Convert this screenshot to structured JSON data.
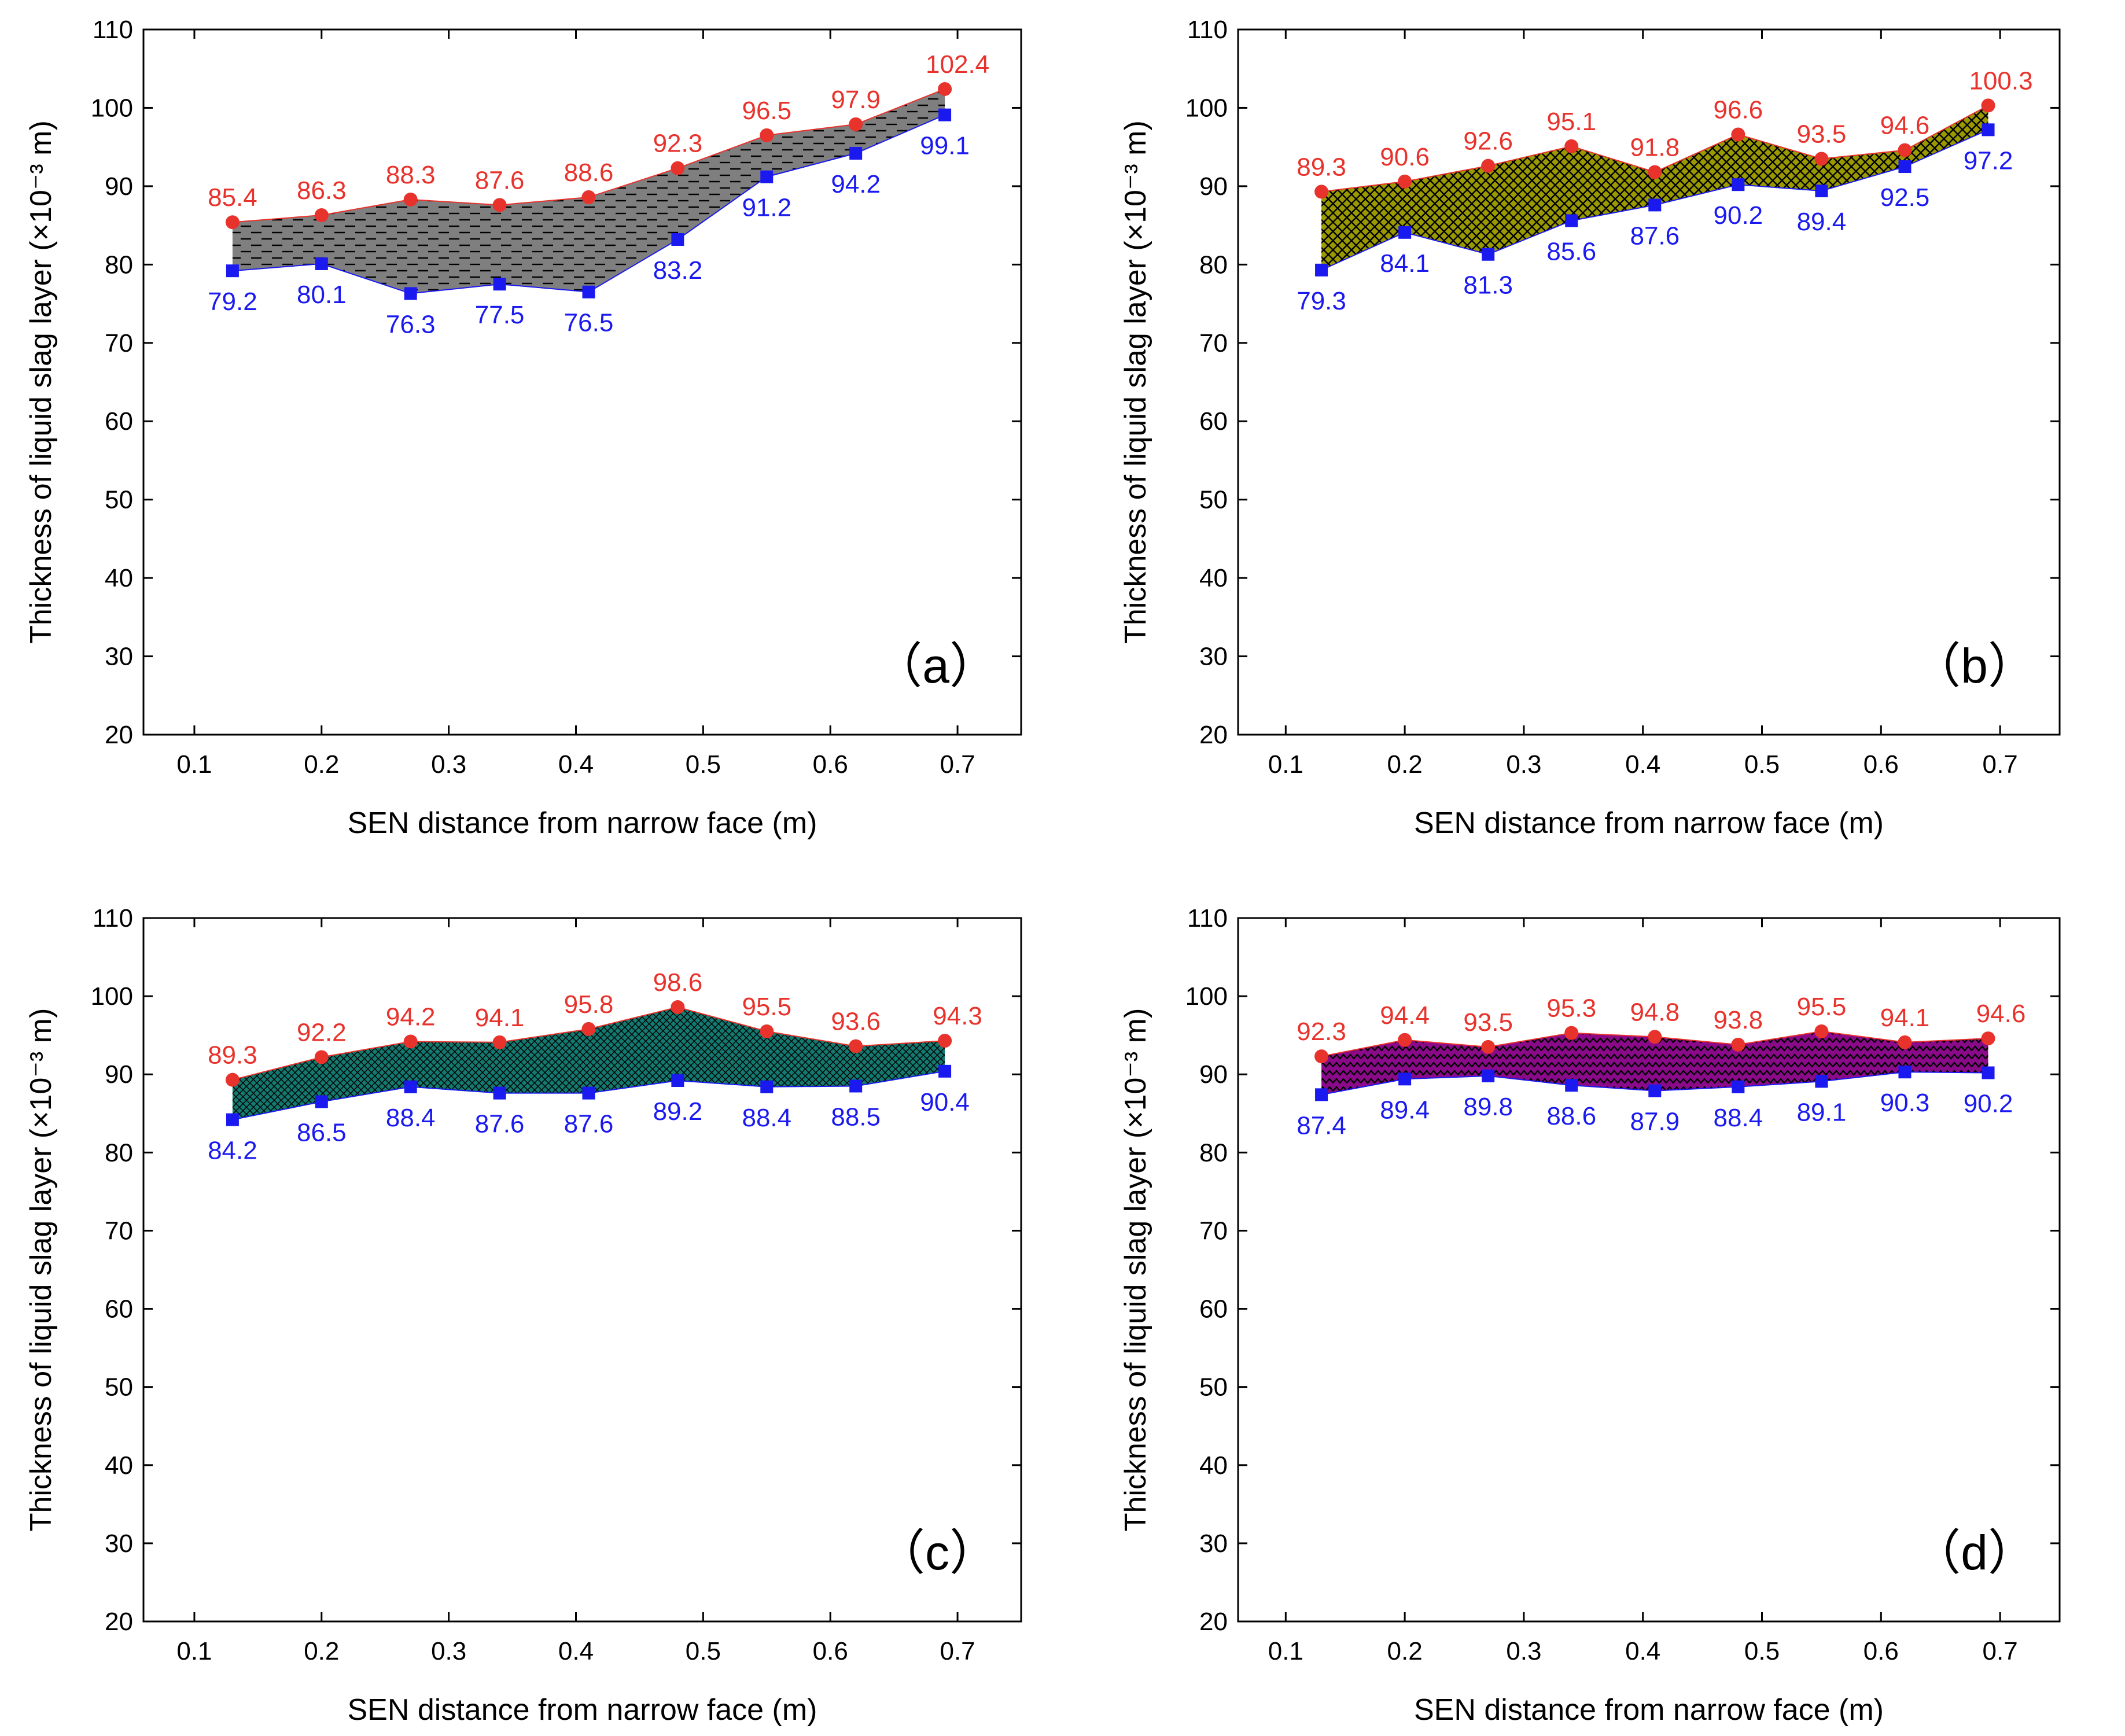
{
  "chart_data": [
    {
      "type": "area",
      "panel_label": "（a）",
      "xlabel": "SEN distance from narrow face (m)",
      "ylabel": "Thickness of liquid slag layer (×10⁻³ m)",
      "xlim": [
        0.06,
        0.75
      ],
      "ylim": [
        20,
        110
      ],
      "xticks": [
        "0.1",
        "0.2",
        "0.3",
        "0.4",
        "0.5",
        "0.6",
        "0.7"
      ],
      "yticks": [
        "20",
        "30",
        "40",
        "50",
        "60",
        "70",
        "80",
        "90",
        "100",
        "110"
      ],
      "x": [
        0.13,
        0.2,
        0.27,
        0.34,
        0.41,
        0.48,
        0.55,
        0.62,
        0.69
      ],
      "fill_color": "#7f7f7f",
      "pattern": "dash",
      "series": [
        {
          "name": "upper",
          "color": "#e8322c",
          "marker": "circle",
          "values": [
            85.4,
            86.3,
            88.3,
            87.6,
            88.6,
            92.3,
            96.5,
            97.9,
            102.4
          ],
          "labels": [
            "85.4",
            "86.3",
            "88.3",
            "87.6",
            "88.6",
            "92.3",
            "96.5",
            "97.9",
            "102.4"
          ]
        },
        {
          "name": "lower",
          "color": "#1a1af0",
          "marker": "square",
          "values": [
            79.2,
            80.1,
            76.3,
            77.5,
            76.5,
            83.2,
            91.2,
            94.2,
            99.1
          ],
          "labels": [
            "79.2",
            "80.1",
            "76.3",
            "77.5",
            "76.5",
            "83.2",
            "91.2",
            "94.2",
            "99.1"
          ]
        }
      ]
    },
    {
      "type": "area",
      "panel_label": "（b）",
      "xlabel": "SEN distance from narrow face (m)",
      "ylabel": "Thickness of liquid slag layer (×10⁻³ m)",
      "xlim": [
        0.06,
        0.75
      ],
      "ylim": [
        20,
        110
      ],
      "xticks": [
        "0.1",
        "0.2",
        "0.3",
        "0.4",
        "0.5",
        "0.6",
        "0.7"
      ],
      "yticks": [
        "20",
        "30",
        "40",
        "50",
        "60",
        "70",
        "80",
        "90",
        "100",
        "110"
      ],
      "x": [
        0.13,
        0.2,
        0.27,
        0.34,
        0.41,
        0.48,
        0.55,
        0.62,
        0.69
      ],
      "fill_color": "#9a9a00",
      "pattern": "cross",
      "series": [
        {
          "name": "upper",
          "color": "#e8322c",
          "marker": "circle",
          "values": [
            89.3,
            90.6,
            92.6,
            95.1,
            91.8,
            96.6,
            93.5,
            94.6,
            100.3
          ],
          "labels": [
            "89.3",
            "90.6",
            "92.6",
            "95.1",
            "91.8",
            "96.6",
            "93.5",
            "94.6",
            "100.3"
          ]
        },
        {
          "name": "lower",
          "color": "#1a1af0",
          "marker": "square",
          "values": [
            79.3,
            84.1,
            81.3,
            85.6,
            87.6,
            90.2,
            89.4,
            92.5,
            97.2
          ],
          "labels": [
            "79.3",
            "84.1",
            "81.3",
            "85.6",
            "87.6",
            "90.2",
            "89.4",
            "92.5",
            "97.2"
          ]
        }
      ]
    },
    {
      "type": "area",
      "panel_label": "（c）",
      "xlabel": "SEN distance from narrow face (m)",
      "ylabel": "Thickness of liquid slag layer (×10⁻³ m)",
      "xlim": [
        0.06,
        0.75
      ],
      "ylim": [
        20,
        110
      ],
      "xticks": [
        "0.1",
        "0.2",
        "0.3",
        "0.4",
        "0.5",
        "0.6",
        "0.7"
      ],
      "yticks": [
        "20",
        "30",
        "40",
        "50",
        "60",
        "70",
        "80",
        "90",
        "100",
        "110"
      ],
      "x": [
        0.13,
        0.2,
        0.27,
        0.34,
        0.41,
        0.48,
        0.55,
        0.62,
        0.69
      ],
      "fill_color": "#127a70",
      "pattern": "grid",
      "series": [
        {
          "name": "upper",
          "color": "#e8322c",
          "marker": "circle",
          "values": [
            89.3,
            92.2,
            94.2,
            94.1,
            95.8,
            98.6,
            95.5,
            93.6,
            94.3
          ],
          "labels": [
            "89.3",
            "92.2",
            "94.2",
            "94.1",
            "95.8",
            "98.6",
            "95.5",
            "93.6",
            "94.3"
          ]
        },
        {
          "name": "lower",
          "color": "#1a1af0",
          "marker": "square",
          "values": [
            84.2,
            86.5,
            88.4,
            87.6,
            87.6,
            89.2,
            88.4,
            88.5,
            90.4
          ],
          "labels": [
            "84.2",
            "86.5",
            "88.4",
            "87.6",
            "87.6",
            "89.2",
            "88.4",
            "88.5",
            "90.4"
          ]
        }
      ]
    },
    {
      "type": "area",
      "panel_label": "（d）",
      "xlabel": "SEN distance from narrow face (m)",
      "ylabel": "Thickness of liquid slag layer (×10⁻³ m)",
      "xlim": [
        0.06,
        0.75
      ],
      "ylim": [
        20,
        110
      ],
      "xticks": [
        "0.1",
        "0.2",
        "0.3",
        "0.4",
        "0.5",
        "0.6",
        "0.7"
      ],
      "yticks": [
        "20",
        "30",
        "40",
        "50",
        "60",
        "70",
        "80",
        "90",
        "100",
        "110"
      ],
      "x": [
        0.13,
        0.2,
        0.27,
        0.34,
        0.41,
        0.48,
        0.55,
        0.62,
        0.69
      ],
      "fill_color": "#8a0a8a",
      "pattern": "zigzag",
      "series": [
        {
          "name": "upper",
          "color": "#e8322c",
          "marker": "circle",
          "values": [
            92.3,
            94.4,
            93.5,
            95.3,
            94.8,
            93.8,
            95.5,
            94.1,
            94.6
          ],
          "labels": [
            "92.3",
            "94.4",
            "93.5",
            "95.3",
            "94.8",
            "93.8",
            "95.5",
            "94.1",
            "94.6"
          ]
        },
        {
          "name": "lower",
          "color": "#1a1af0",
          "marker": "square",
          "values": [
            87.4,
            89.4,
            89.8,
            88.6,
            87.9,
            88.4,
            89.1,
            90.3,
            90.2
          ],
          "labels": [
            "87.4",
            "89.4",
            "89.8",
            "88.6",
            "87.9",
            "88.4",
            "89.1",
            "90.3",
            "90.2"
          ]
        }
      ]
    }
  ]
}
